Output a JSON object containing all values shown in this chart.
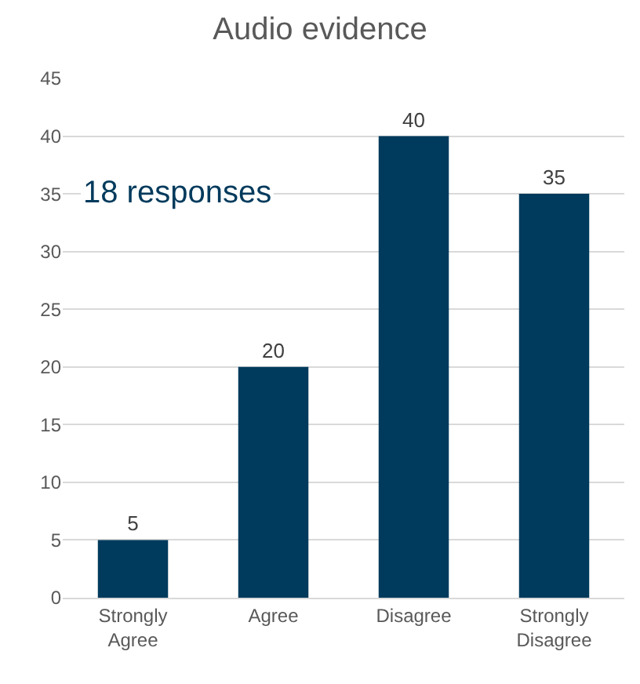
{
  "chart_data": {
    "type": "bar",
    "title": "Audio evidence",
    "categories": [
      "Strongly Agree",
      "Agree",
      "Disagree",
      "Strongly Disagree"
    ],
    "values": [
      5,
      20,
      40,
      35
    ],
    "color": "#003a5c",
    "ylim": [
      0,
      45
    ],
    "yticks": [
      0,
      5,
      10,
      15,
      20,
      25,
      30,
      35,
      40,
      45
    ],
    "grid": "y",
    "data_labels": true,
    "annotations": [
      "18 responses"
    ]
  }
}
